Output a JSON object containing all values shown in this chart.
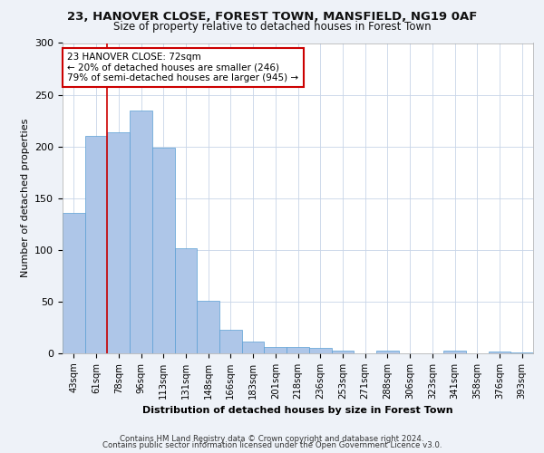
{
  "title_line1": "23, HANOVER CLOSE, FOREST TOWN, MANSFIELD, NG19 0AF",
  "title_line2": "Size of property relative to detached houses in Forest Town",
  "xlabel": "Distribution of detached houses by size in Forest Town",
  "ylabel": "Number of detached properties",
  "categories": [
    "43sqm",
    "61sqm",
    "78sqm",
    "96sqm",
    "113sqm",
    "131sqm",
    "148sqm",
    "166sqm",
    "183sqm",
    "201sqm",
    "218sqm",
    "236sqm",
    "253sqm",
    "271sqm",
    "288sqm",
    "306sqm",
    "323sqm",
    "341sqm",
    "358sqm",
    "376sqm",
    "393sqm"
  ],
  "values": [
    136,
    210,
    214,
    235,
    199,
    102,
    51,
    23,
    11,
    6,
    6,
    5,
    3,
    0,
    3,
    0,
    0,
    3,
    0,
    2,
    1
  ],
  "bar_color": "#aec6e8",
  "bar_edge_color": "#5a9fd4",
  "vline_x": 1.5,
  "annotation_text": "23 HANOVER CLOSE: 72sqm\n← 20% of detached houses are smaller (246)\n79% of semi-detached houses are larger (945) →",
  "annotation_box_color": "#ffffff",
  "annotation_box_edge_color": "#cc0000",
  "vline_color": "#cc0000",
  "footer_line1": "Contains HM Land Registry data © Crown copyright and database right 2024.",
  "footer_line2": "Contains public sector information licensed under the Open Government Licence v3.0.",
  "ylim": [
    0,
    300
  ],
  "yticks": [
    0,
    50,
    100,
    150,
    200,
    250,
    300
  ],
  "background_color": "#eef2f8",
  "plot_background": "#ffffff",
  "grid_color": "#c8d4e8"
}
